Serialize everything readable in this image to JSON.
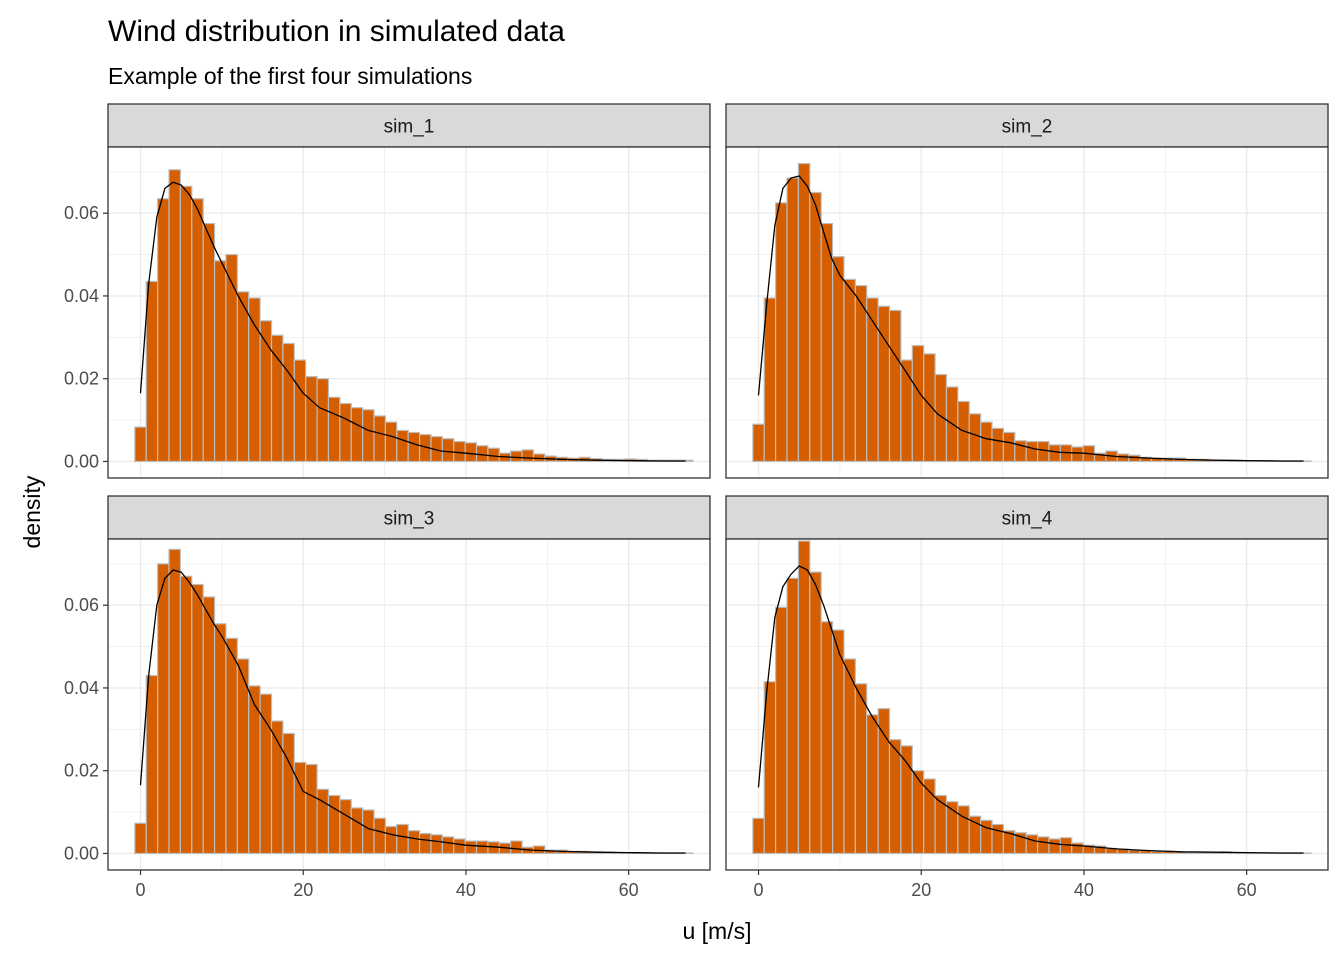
{
  "chart_data": {
    "type": "bar",
    "title": "Wind distribution in simulated data",
    "subtitle": "Example of the first four simulations",
    "xlabel": "u [m/s]",
    "ylabel": "density",
    "xlim": [
      -4,
      70
    ],
    "ylim": [
      -0.004,
      0.076
    ],
    "x_ticks": [
      0,
      20,
      40,
      60
    ],
    "x_tick_labels": [
      "0",
      "20",
      "40",
      "60"
    ],
    "y_ticks": [
      0,
      0.02,
      0.04,
      0.06
    ],
    "y_tick_labels": [
      "0.00",
      "0.02",
      "0.04",
      "0.06"
    ],
    "bin_width": 1.4,
    "bin_start": -0.7,
    "grid": true,
    "colors": {
      "bar_fill": "#d55e00",
      "bar_outline": "#bdbdbd",
      "density_line": "#000000",
      "strip_fill": "#d9d9d9",
      "grid": "#ebebeb"
    },
    "panels": [
      {
        "name": "sim_1",
        "histogram": [
          0.0083,
          0.0435,
          0.0635,
          0.0705,
          0.0665,
          0.0635,
          0.0575,
          0.0485,
          0.05,
          0.041,
          0.0395,
          0.034,
          0.0305,
          0.0285,
          0.0245,
          0.0205,
          0.02,
          0.0155,
          0.014,
          0.013,
          0.0125,
          0.011,
          0.0095,
          0.0075,
          0.007,
          0.0065,
          0.006,
          0.0055,
          0.0048,
          0.0045,
          0.0038,
          0.0032,
          0.002,
          0.0025,
          0.0028,
          0.0018,
          0.0013,
          0.001,
          0.0008,
          0.001,
          0.0007,
          0.0005,
          0.0005,
          0.0006,
          0.0005,
          0.0003,
          0.0003,
          0.0003,
          0.0003
        ],
        "density_curve": {
          "x": [
            0,
            1,
            2,
            3,
            4,
            5,
            6,
            7,
            8,
            9,
            10,
            12,
            14,
            16,
            18,
            20,
            22,
            25,
            28,
            31,
            34,
            37,
            40,
            44,
            48,
            52,
            56,
            60,
            64,
            67
          ],
          "y": [
            0.0165,
            0.043,
            0.059,
            0.066,
            0.0675,
            0.0668,
            0.0645,
            0.061,
            0.0565,
            0.052,
            0.048,
            0.04,
            0.033,
            0.027,
            0.022,
            0.0165,
            0.013,
            0.0105,
            0.0075,
            0.006,
            0.004,
            0.0025,
            0.002,
            0.0012,
            0.0008,
            0.0005,
            0.0003,
            0.0002,
            0.0001,
            0.0001
          ]
        }
      },
      {
        "name": "sim_2",
        "histogram": [
          0.009,
          0.0395,
          0.0625,
          0.0685,
          0.072,
          0.065,
          0.0575,
          0.0495,
          0.044,
          0.0425,
          0.0395,
          0.0375,
          0.0365,
          0.0245,
          0.028,
          0.026,
          0.021,
          0.018,
          0.0145,
          0.0115,
          0.0095,
          0.008,
          0.007,
          0.005,
          0.0048,
          0.0048,
          0.004,
          0.004,
          0.0035,
          0.0038,
          0.002,
          0.0025,
          0.0018,
          0.0015,
          0.001,
          0.0008,
          0.0008,
          0.0008,
          0.0005,
          0.0005,
          0.0003,
          0.0003,
          0.0003,
          0.0002,
          0.0002,
          0.0002,
          0.0001,
          0.0001,
          0.0001
        ],
        "density_curve": {
          "x": [
            0,
            1,
            2,
            3,
            4,
            5,
            6,
            7,
            8,
            9,
            10,
            12,
            14,
            16,
            18,
            20,
            22,
            25,
            28,
            31,
            34,
            37,
            40,
            44,
            48,
            52,
            56,
            60,
            64,
            67
          ],
          "y": [
            0.016,
            0.038,
            0.057,
            0.066,
            0.0685,
            0.069,
            0.0665,
            0.062,
            0.0555,
            0.049,
            0.045,
            0.04,
            0.034,
            0.028,
            0.022,
            0.016,
            0.0115,
            0.0075,
            0.0055,
            0.0045,
            0.003,
            0.0022,
            0.002,
            0.0012,
            0.0008,
            0.0005,
            0.0003,
            0.0002,
            0.0001,
            0.0001
          ]
        }
      },
      {
        "name": "sim_3",
        "histogram": [
          0.0073,
          0.043,
          0.07,
          0.0735,
          0.067,
          0.065,
          0.062,
          0.0555,
          0.052,
          0.047,
          0.0405,
          0.0385,
          0.032,
          0.029,
          0.022,
          0.0215,
          0.0155,
          0.014,
          0.013,
          0.011,
          0.0105,
          0.0085,
          0.0065,
          0.007,
          0.0055,
          0.0048,
          0.0045,
          0.004,
          0.0035,
          0.003,
          0.003,
          0.0028,
          0.0025,
          0.003,
          0.0015,
          0.0018,
          0.0008,
          0.0008,
          0.0005,
          0.0005,
          0.0004,
          0.0003,
          0.0002,
          0.0002,
          0.0002,
          0.0001,
          0.0001,
          0.0001,
          0.0001
        ],
        "density_curve": {
          "x": [
            0,
            1,
            2,
            3,
            4,
            5,
            6,
            7,
            8,
            9,
            10,
            12,
            14,
            16,
            18,
            20,
            22,
            25,
            28,
            31,
            34,
            37,
            40,
            44,
            48,
            52,
            56,
            60,
            64,
            67
          ],
          "y": [
            0.0165,
            0.043,
            0.06,
            0.0665,
            0.0685,
            0.068,
            0.0655,
            0.0625,
            0.059,
            0.0555,
            0.0525,
            0.0455,
            0.036,
            0.03,
            0.023,
            0.015,
            0.013,
            0.0095,
            0.006,
            0.0045,
            0.0035,
            0.0028,
            0.002,
            0.0015,
            0.0008,
            0.0005,
            0.0003,
            0.0002,
            0.0001,
            0.0001
          ]
        }
      },
      {
        "name": "sim_4",
        "histogram": [
          0.0085,
          0.0415,
          0.0595,
          0.0665,
          0.0755,
          0.068,
          0.056,
          0.054,
          0.047,
          0.041,
          0.0335,
          0.035,
          0.0275,
          0.026,
          0.02,
          0.018,
          0.014,
          0.0125,
          0.0115,
          0.009,
          0.008,
          0.007,
          0.0055,
          0.005,
          0.0045,
          0.004,
          0.0035,
          0.0038,
          0.0025,
          0.002,
          0.0018,
          0.0012,
          0.001,
          0.0008,
          0.0007,
          0.0005,
          0.0005,
          0.0004,
          0.0003,
          0.0003,
          0.0002,
          0.0004,
          0.0001,
          0.0001,
          0.0001,
          0.0001,
          0.0001,
          0.0001,
          0.0001
        ],
        "density_curve": {
          "x": [
            0,
            1,
            2,
            3,
            4,
            5,
            6,
            7,
            8,
            9,
            10,
            12,
            14,
            16,
            18,
            20,
            22,
            25,
            28,
            31,
            34,
            37,
            40,
            44,
            48,
            52,
            56,
            60,
            64,
            67
          ],
          "y": [
            0.016,
            0.039,
            0.057,
            0.0645,
            0.0675,
            0.0695,
            0.0685,
            0.065,
            0.06,
            0.054,
            0.048,
            0.04,
            0.033,
            0.027,
            0.0225,
            0.017,
            0.013,
            0.009,
            0.0062,
            0.0048,
            0.003,
            0.0022,
            0.0018,
            0.0011,
            0.0007,
            0.0004,
            0.0003,
            0.0002,
            0.0001,
            0.0001
          ]
        }
      }
    ]
  }
}
